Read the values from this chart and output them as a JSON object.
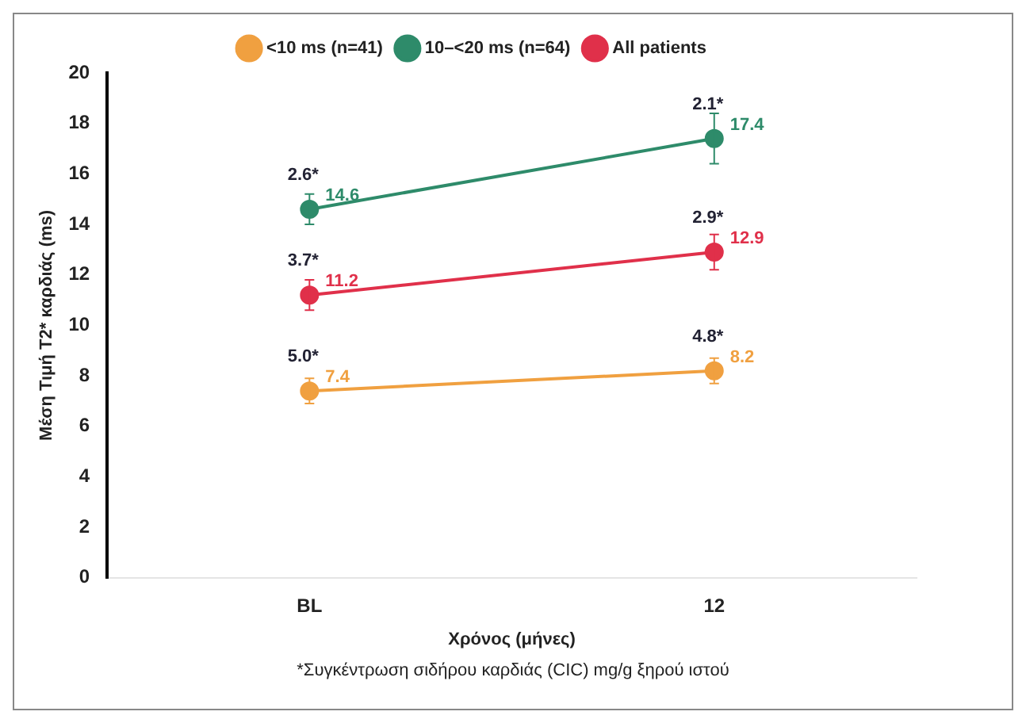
{
  "chart_data": {
    "type": "line",
    "xlabel": "Χρόνος (μήνες)",
    "ylabel": "Μέση Τιμή T2* καρδιάς (ms)",
    "categories": [
      "BL",
      "12"
    ],
    "series": [
      {
        "name": "<10 ms (n=41)",
        "color": "#f0a040",
        "values": [
          7.4,
          8.2
        ],
        "errors": [
          0.5,
          0.5
        ]
      },
      {
        "name": "10–<20 ms (n=64)",
        "color": "#2e8b6a",
        "values": [
          14.6,
          17.4
        ],
        "errors": [
          0.6,
          1.0
        ]
      },
      {
        "name": "All patients",
        "color": "#e0304a",
        "values": [
          11.2,
          12.9
        ],
        "errors": [
          0.6,
          0.7
        ]
      }
    ],
    "ylim": [
      0,
      20
    ],
    "yticks": [
      0,
      2,
      4,
      6,
      8,
      10,
      12,
      14,
      16,
      18,
      20
    ],
    "grid": false,
    "legend": "top",
    "marker": "circle",
    "line_style": "solid",
    "data_labels": true,
    "annotations": [
      {
        "text": "5.0*",
        "x": "BL",
        "y": 7.4
      },
      {
        "text": "4.8*",
        "x": "12",
        "y": 8.2
      },
      {
        "text": "2.6*",
        "x": "BL",
        "y": 14.6
      },
      {
        "text": "2.1*",
        "x": "12",
        "y": 17.4
      },
      {
        "text": "3.7*",
        "x": "BL",
        "y": 11.2
      },
      {
        "text": "2.9*",
        "x": "12",
        "y": 12.9
      },
      "*Συγκέντρωση σιδήρου καρδιάς (CIC) mg/g ξηρού ιστού"
    ]
  }
}
